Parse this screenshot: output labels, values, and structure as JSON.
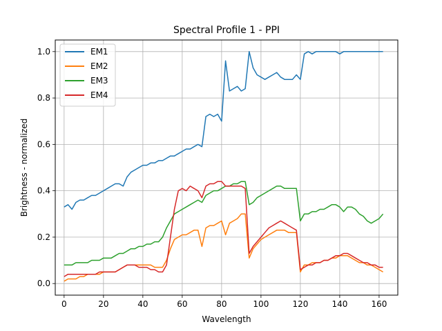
{
  "chart_data": {
    "type": "line",
    "title": "Spectral Profile 1 - PPI",
    "xlabel": "Wavelength",
    "ylabel": "Brightness - normalized",
    "xlim": [
      -4.5,
      169.5
    ],
    "ylim": [
      -0.05,
      1.05
    ],
    "xticks": [
      0,
      20,
      40,
      60,
      80,
      100,
      120,
      140,
      160
    ],
    "yticks": [
      0.0,
      0.2,
      0.4,
      0.6,
      0.8,
      1.0
    ],
    "xtick_labels": [
      "0",
      "20",
      "40",
      "60",
      "80",
      "100",
      "120",
      "140",
      "160"
    ],
    "ytick_labels": [
      "0.0",
      "0.2",
      "0.4",
      "0.6",
      "0.8",
      "1.0"
    ],
    "grid": true,
    "legend_position": "top-left",
    "x": [
      0,
      2,
      4,
      6,
      8,
      10,
      12,
      14,
      16,
      18,
      20,
      22,
      24,
      26,
      28,
      30,
      32,
      34,
      36,
      38,
      40,
      42,
      44,
      46,
      48,
      50,
      52,
      54,
      56,
      58,
      60,
      62,
      64,
      66,
      68,
      70,
      72,
      74,
      76,
      78,
      80,
      82,
      84,
      86,
      88,
      90,
      92,
      94,
      96,
      98,
      100,
      102,
      104,
      106,
      108,
      110,
      112,
      114,
      116,
      118,
      120,
      122,
      124,
      126,
      128,
      130,
      132,
      134,
      136,
      138,
      140,
      142,
      144,
      146,
      148,
      150,
      152,
      154,
      156,
      158,
      160,
      162
    ],
    "series": [
      {
        "name": "EM1",
        "color": "#1f77b4",
        "values": [
          0.33,
          0.34,
          0.32,
          0.35,
          0.36,
          0.36,
          0.37,
          0.38,
          0.38,
          0.39,
          0.4,
          0.41,
          0.42,
          0.43,
          0.43,
          0.42,
          0.46,
          0.48,
          0.49,
          0.5,
          0.51,
          0.51,
          0.52,
          0.52,
          0.53,
          0.53,
          0.54,
          0.55,
          0.55,
          0.56,
          0.57,
          0.58,
          0.58,
          0.59,
          0.6,
          0.59,
          0.72,
          0.73,
          0.72,
          0.73,
          0.7,
          0.96,
          0.83,
          0.84,
          0.85,
          0.83,
          0.84,
          1.0,
          0.93,
          0.9,
          0.89,
          0.88,
          0.89,
          0.9,
          0.91,
          0.89,
          0.88,
          0.88,
          0.88,
          0.9,
          0.88,
          0.99,
          1.0,
          0.99,
          1.0,
          1.0,
          1.0,
          1.0,
          1.0,
          1.0,
          0.99,
          1.0,
          1.0,
          1.0,
          1.0,
          1.0,
          1.0,
          1.0,
          1.0,
          1.0,
          1.0,
          1.0
        ]
      },
      {
        "name": "EM2",
        "color": "#ff7f0e",
        "values": [
          0.01,
          0.02,
          0.02,
          0.02,
          0.03,
          0.03,
          0.04,
          0.04,
          0.04,
          0.04,
          0.05,
          0.05,
          0.05,
          0.05,
          0.06,
          0.07,
          0.08,
          0.08,
          0.08,
          0.08,
          0.08,
          0.08,
          0.08,
          0.07,
          0.07,
          0.07,
          0.1,
          0.15,
          0.19,
          0.2,
          0.21,
          0.21,
          0.22,
          0.23,
          0.23,
          0.16,
          0.24,
          0.25,
          0.25,
          0.26,
          0.27,
          0.21,
          0.26,
          0.27,
          0.28,
          0.3,
          0.3,
          0.11,
          0.15,
          0.17,
          0.19,
          0.2,
          0.21,
          0.22,
          0.23,
          0.23,
          0.23,
          0.22,
          0.22,
          0.22,
          0.05,
          0.08,
          0.08,
          0.09,
          0.09,
          0.09,
          0.1,
          0.1,
          0.11,
          0.11,
          0.12,
          0.12,
          0.12,
          0.11,
          0.1,
          0.09,
          0.09,
          0.08,
          0.08,
          0.07,
          0.06,
          0.05
        ]
      },
      {
        "name": "EM3",
        "color": "#2ca02c",
        "values": [
          0.08,
          0.08,
          0.08,
          0.09,
          0.09,
          0.09,
          0.09,
          0.1,
          0.1,
          0.1,
          0.11,
          0.11,
          0.11,
          0.12,
          0.13,
          0.13,
          0.14,
          0.15,
          0.15,
          0.16,
          0.16,
          0.17,
          0.17,
          0.18,
          0.18,
          0.2,
          0.24,
          0.27,
          0.3,
          0.31,
          0.32,
          0.33,
          0.34,
          0.35,
          0.36,
          0.35,
          0.38,
          0.39,
          0.4,
          0.4,
          0.41,
          0.42,
          0.42,
          0.43,
          0.43,
          0.44,
          0.44,
          0.34,
          0.35,
          0.37,
          0.38,
          0.39,
          0.4,
          0.41,
          0.42,
          0.42,
          0.41,
          0.41,
          0.41,
          0.41,
          0.27,
          0.3,
          0.3,
          0.31,
          0.31,
          0.32,
          0.32,
          0.33,
          0.34,
          0.34,
          0.33,
          0.31,
          0.33,
          0.33,
          0.32,
          0.3,
          0.29,
          0.27,
          0.26,
          0.27,
          0.28,
          0.3
        ]
      },
      {
        "name": "EM4",
        "color": "#d62728",
        "values": [
          0.03,
          0.04,
          0.04,
          0.04,
          0.04,
          0.04,
          0.04,
          0.04,
          0.04,
          0.05,
          0.05,
          0.05,
          0.05,
          0.05,
          0.06,
          0.07,
          0.08,
          0.08,
          0.08,
          0.07,
          0.07,
          0.07,
          0.06,
          0.06,
          0.05,
          0.05,
          0.08,
          0.2,
          0.32,
          0.4,
          0.41,
          0.4,
          0.42,
          0.41,
          0.4,
          0.37,
          0.42,
          0.43,
          0.43,
          0.44,
          0.44,
          0.42,
          0.42,
          0.42,
          0.42,
          0.42,
          0.41,
          0.13,
          0.16,
          0.18,
          0.2,
          0.22,
          0.24,
          0.25,
          0.26,
          0.27,
          0.26,
          0.25,
          0.24,
          0.23,
          0.06,
          0.07,
          0.08,
          0.08,
          0.09,
          0.09,
          0.1,
          0.1,
          0.11,
          0.12,
          0.12,
          0.13,
          0.13,
          0.12,
          0.11,
          0.1,
          0.09,
          0.09,
          0.08,
          0.08,
          0.07,
          0.07
        ]
      }
    ]
  }
}
